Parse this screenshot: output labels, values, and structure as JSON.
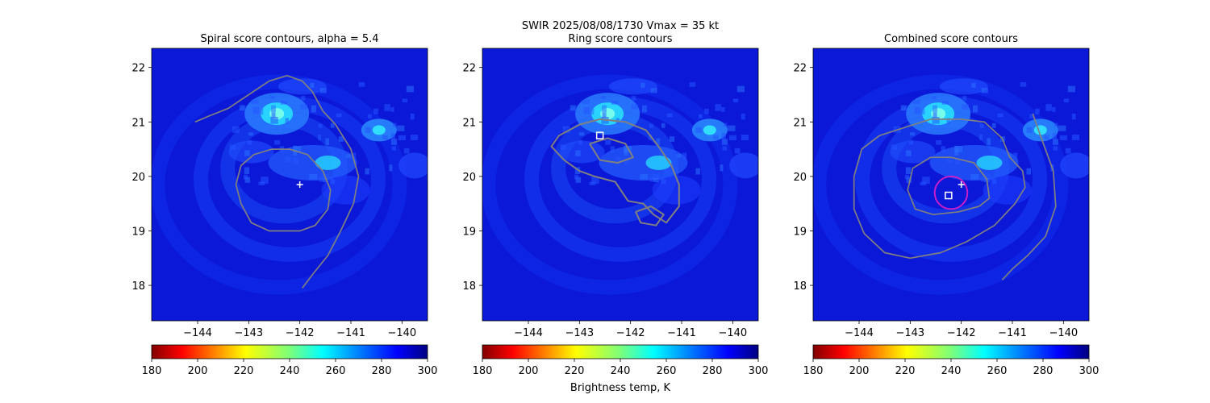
{
  "suptitle": "SWIR  2025/08/08/1730    Vmax = 35 kt",
  "colorbar_label": "Brightness temp, K",
  "colormap": "jet_r",
  "colors": {
    "contour": "#808080",
    "marker": "#ffffff",
    "circle": "#c81ec8"
  },
  "chart_data": [
    {
      "type": "heatmap",
      "title": "Spiral score contours, alpha =  5.4",
      "xlabel": "",
      "ylabel": "",
      "xlim": [
        -144.9,
        -139.5
      ],
      "ylim": [
        17.35,
        22.35
      ],
      "xticks": [
        -144,
        -143,
        -142,
        -141,
        -140
      ],
      "yticks": [
        18,
        19,
        20,
        21,
        22
      ],
      "xtick_labels": [
        "−144",
        "−143",
        "−142",
        "−141",
        "−140"
      ],
      "ytick_labels": [
        "18",
        "19",
        "20",
        "21",
        "22"
      ],
      "color_range": [
        180,
        300
      ],
      "colorbar_ticks": [
        "180",
        "200",
        "220",
        "240",
        "260",
        "280",
        "300"
      ],
      "contours": [
        [
          [
            -144.05,
            21.0
          ],
          [
            -143.8,
            21.1
          ],
          [
            -143.4,
            21.25
          ],
          [
            -143.0,
            21.5
          ],
          [
            -142.6,
            21.75
          ],
          [
            -142.25,
            21.85
          ],
          [
            -141.95,
            21.75
          ],
          [
            -141.75,
            21.55
          ],
          [
            -141.55,
            21.2
          ],
          [
            -141.3,
            20.95
          ],
          [
            -141.0,
            20.5
          ],
          [
            -140.85,
            20.0
          ],
          [
            -140.95,
            19.5
          ],
          [
            -141.2,
            19.0
          ],
          [
            -141.45,
            18.55
          ],
          [
            -141.75,
            18.2
          ],
          [
            -141.95,
            17.95
          ]
        ],
        [
          [
            -142.55,
            20.5
          ],
          [
            -142.9,
            20.4
          ],
          [
            -143.15,
            20.2
          ],
          [
            -143.25,
            19.85
          ],
          [
            -143.15,
            19.5
          ],
          [
            -142.95,
            19.15
          ],
          [
            -142.6,
            19.0
          ],
          [
            -142.0,
            19.0
          ],
          [
            -141.7,
            19.1
          ],
          [
            -141.45,
            19.4
          ],
          [
            -141.4,
            19.75
          ],
          [
            -141.55,
            20.1
          ],
          [
            -141.85,
            20.4
          ],
          [
            -142.2,
            20.5
          ],
          [
            -142.55,
            20.5
          ]
        ]
      ],
      "markers": [
        {
          "symbol": "plus",
          "lon": -142.0,
          "lat": 19.85
        }
      ]
    },
    {
      "type": "heatmap",
      "title": "Ring score contours",
      "xlabel": "",
      "ylabel": "",
      "xlim": [
        -144.9,
        -139.5
      ],
      "ylim": [
        17.35,
        22.35
      ],
      "xticks": [
        -144,
        -143,
        -142,
        -141,
        -140
      ],
      "yticks": [
        18,
        19,
        20,
        21,
        22
      ],
      "xtick_labels": [
        "−144",
        "−143",
        "−142",
        "−141",
        "−140"
      ],
      "ytick_labels": [
        "18",
        "19",
        "20",
        "21",
        "22"
      ],
      "color_range": [
        180,
        300
      ],
      "colorbar_ticks": [
        "180",
        "200",
        "220",
        "240",
        "260",
        "280",
        "300"
      ],
      "contours": [
        [
          [
            -143.3,
            20.3
          ],
          [
            -143.55,
            20.55
          ],
          [
            -143.4,
            20.75
          ],
          [
            -143.0,
            20.95
          ],
          [
            -142.6,
            21.05
          ],
          [
            -142.1,
            21.0
          ],
          [
            -141.7,
            20.85
          ],
          [
            -141.45,
            20.55
          ],
          [
            -141.2,
            20.2
          ],
          [
            -141.05,
            19.85
          ],
          [
            -141.05,
            19.45
          ],
          [
            -141.3,
            19.15
          ],
          [
            -141.55,
            19.3
          ],
          [
            -141.75,
            19.5
          ],
          [
            -142.05,
            19.55
          ],
          [
            -142.3,
            19.9
          ],
          [
            -142.7,
            20.0
          ],
          [
            -143.0,
            20.1
          ],
          [
            -143.3,
            20.3
          ]
        ],
        [
          [
            -142.8,
            20.6
          ],
          [
            -142.45,
            20.7
          ],
          [
            -142.1,
            20.6
          ],
          [
            -141.95,
            20.35
          ],
          [
            -142.25,
            20.25
          ],
          [
            -142.6,
            20.3
          ],
          [
            -142.8,
            20.6
          ]
        ],
        [
          [
            -141.9,
            19.35
          ],
          [
            -141.6,
            19.45
          ],
          [
            -141.35,
            19.3
          ],
          [
            -141.5,
            19.1
          ],
          [
            -141.8,
            19.15
          ],
          [
            -141.9,
            19.35
          ]
        ]
      ],
      "markers": [
        {
          "symbol": "square",
          "lon": -142.6,
          "lat": 20.75
        }
      ]
    },
    {
      "type": "heatmap",
      "title": "Combined score contours",
      "xlabel": "",
      "ylabel": "",
      "xlim": [
        -144.9,
        -139.5
      ],
      "ylim": [
        17.35,
        22.35
      ],
      "xticks": [
        -144,
        -143,
        -142,
        -141,
        -140
      ],
      "yticks": [
        18,
        19,
        20,
        21,
        22
      ],
      "xtick_labels": [
        "−144",
        "−143",
        "−142",
        "−141",
        "−140"
      ],
      "ytick_labels": [
        "18",
        "19",
        "20",
        "21",
        "22"
      ],
      "color_range": [
        180,
        300
      ],
      "colorbar_ticks": [
        "180",
        "200",
        "220",
        "240",
        "260",
        "280",
        "300"
      ],
      "contours": [
        [
          [
            -142.6,
            21.05
          ],
          [
            -143.1,
            20.9
          ],
          [
            -143.6,
            20.75
          ],
          [
            -143.95,
            20.5
          ],
          [
            -144.1,
            20.0
          ],
          [
            -144.1,
            19.4
          ],
          [
            -143.9,
            18.95
          ],
          [
            -143.5,
            18.6
          ],
          [
            -143.0,
            18.5
          ],
          [
            -142.4,
            18.6
          ],
          [
            -141.9,
            18.8
          ],
          [
            -141.35,
            19.1
          ],
          [
            -140.95,
            19.5
          ],
          [
            -140.75,
            19.8
          ],
          [
            -140.8,
            20.1
          ],
          [
            -141.05,
            20.35
          ],
          [
            -141.2,
            20.7
          ],
          [
            -141.55,
            21.0
          ],
          [
            -142.0,
            21.05
          ],
          [
            -142.6,
            21.05
          ]
        ],
        [
          [
            -142.2,
            20.35
          ],
          [
            -142.6,
            20.35
          ],
          [
            -142.95,
            20.15
          ],
          [
            -143.05,
            19.75
          ],
          [
            -142.9,
            19.4
          ],
          [
            -142.55,
            19.3
          ],
          [
            -142.05,
            19.35
          ],
          [
            -141.65,
            19.45
          ],
          [
            -141.45,
            19.6
          ],
          [
            -141.5,
            19.95
          ],
          [
            -141.75,
            20.25
          ],
          [
            -142.2,
            20.35
          ]
        ],
        [
          [
            -140.6,
            21.15
          ],
          [
            -140.45,
            20.75
          ],
          [
            -140.2,
            20.1
          ],
          [
            -140.15,
            19.45
          ],
          [
            -140.35,
            18.9
          ],
          [
            -140.7,
            18.55
          ],
          [
            -141.0,
            18.3
          ],
          [
            -141.2,
            18.1
          ]
        ]
      ],
      "circle": {
        "lon": -142.2,
        "lat": 19.7,
        "radius_deg": 0.32
      },
      "markers": [
        {
          "symbol": "plus",
          "lon": -142.0,
          "lat": 19.85
        },
        {
          "symbol": "square",
          "lon": -142.25,
          "lat": 19.65
        }
      ]
    }
  ]
}
